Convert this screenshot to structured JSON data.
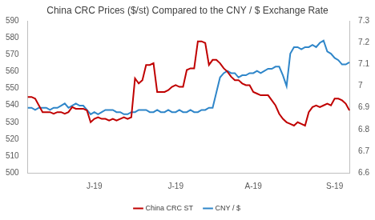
{
  "chart_data": {
    "type": "line",
    "title": "China CRC Prices ($/st) Compared to the CNY / $ Exchange Rate",
    "categories": [
      null,
      null,
      null,
      null,
      null,
      null,
      null,
      null,
      null,
      null,
      null,
      null,
      null,
      null,
      null,
      null,
      null,
      null,
      "J-19",
      null,
      null,
      null,
      null,
      null,
      null,
      null,
      null,
      null,
      null,
      null,
      null,
      null,
      null,
      null,
      null,
      null,
      null,
      null,
      null,
      null,
      "J-19",
      null,
      null,
      null,
      null,
      null,
      null,
      null,
      null,
      null,
      null,
      null,
      null,
      null,
      null,
      null,
      null,
      null,
      null,
      null,
      null,
      "A-19",
      null,
      null,
      null,
      null,
      null,
      null,
      null,
      null,
      null,
      null,
      null,
      null,
      null,
      null,
      null,
      null,
      null,
      null,
      null,
      null,
      null,
      "S-19",
      null,
      null,
      null,
      null
    ],
    "series": [
      {
        "name": "China CRC ST",
        "color": "#c00000",
        "axis": "y",
        "values": [
          545,
          545,
          544,
          540,
          536,
          536,
          536,
          535,
          536,
          536,
          535,
          536,
          539,
          538,
          538,
          538,
          537,
          530,
          532,
          533,
          532,
          532,
          531,
          532,
          531,
          532,
          533,
          532,
          533,
          556,
          553,
          555,
          564,
          564,
          565,
          548,
          548,
          548,
          549,
          551,
          552,
          551,
          551,
          561,
          562,
          562,
          578,
          578,
          577,
          564,
          567,
          567,
          565,
          562,
          560,
          557,
          555,
          555,
          553,
          552,
          552,
          548,
          547,
          546,
          546,
          546,
          543,
          540,
          535,
          532,
          530,
          529,
          528,
          530,
          529,
          528,
          536,
          539,
          540,
          539,
          540,
          541,
          540,
          544,
          544,
          543,
          541,
          537
        ]
      },
      {
        "name": "CNY / $",
        "color": "#2f86c9",
        "axis": "y2",
        "values": [
          6.9,
          6.9,
          6.89,
          6.9,
          6.9,
          6.9,
          6.89,
          6.9,
          6.9,
          6.91,
          6.92,
          6.9,
          6.91,
          6.92,
          6.91,
          6.91,
          6.89,
          6.87,
          6.88,
          6.87,
          6.88,
          6.89,
          6.89,
          6.89,
          6.88,
          6.88,
          6.87,
          6.87,
          6.88,
          6.88,
          6.89,
          6.89,
          6.89,
          6.88,
          6.88,
          6.89,
          6.88,
          6.88,
          6.89,
          6.88,
          6.88,
          6.89,
          6.88,
          6.88,
          6.89,
          6.88,
          6.88,
          6.89,
          6.89,
          6.9,
          6.9,
          6.97,
          7.04,
          7.06,
          7.07,
          7.06,
          7.06,
          7.04,
          7.05,
          7.05,
          7.06,
          7.06,
          7.07,
          7.06,
          7.07,
          7.08,
          7.08,
          7.09,
          7.09,
          7.05,
          7.0,
          7.15,
          7.18,
          7.18,
          7.17,
          7.18,
          7.18,
          7.19,
          7.18,
          7.2,
          7.21,
          7.16,
          7.15,
          7.13,
          7.12,
          7.1,
          7.1,
          7.11
        ]
      }
    ],
    "ylim": [
      500,
      590
    ],
    "yticks": [
      500,
      510,
      520,
      530,
      540,
      550,
      560,
      570,
      580,
      590
    ],
    "y2lim": [
      6.6,
      7.3
    ],
    "y2ticks": [
      6.6,
      6.7,
      6.8,
      6.9,
      7,
      7.1,
      7.2,
      7.3
    ],
    "grid": false,
    "legend": "bottom"
  }
}
